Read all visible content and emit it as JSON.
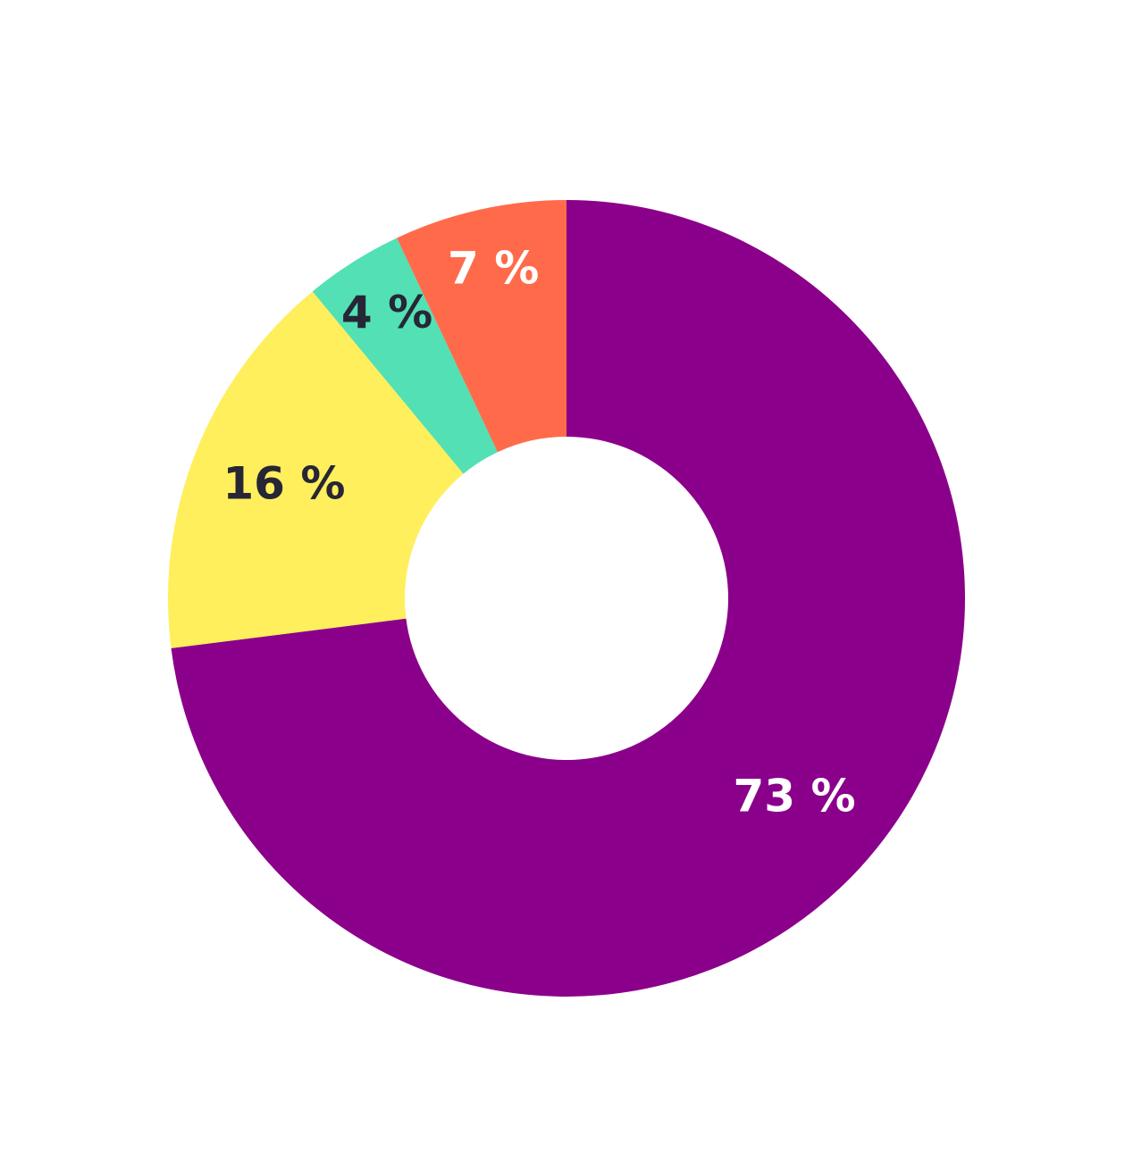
{
  "chart_data": {
    "type": "donut",
    "categories": [
      null,
      null,
      null,
      null
    ],
    "values": [
      73,
      16,
      4,
      7
    ],
    "value_labels": [
      "73 %",
      "16 %",
      "4 %",
      "7 %"
    ],
    "colors": [
      "#8b008b",
      "#ffef5c",
      "#52e0b4",
      "#ff6b4a"
    ],
    "label_colors": [
      "#ffffff",
      "#262636",
      "#262636",
      "#ffffff"
    ]
  }
}
